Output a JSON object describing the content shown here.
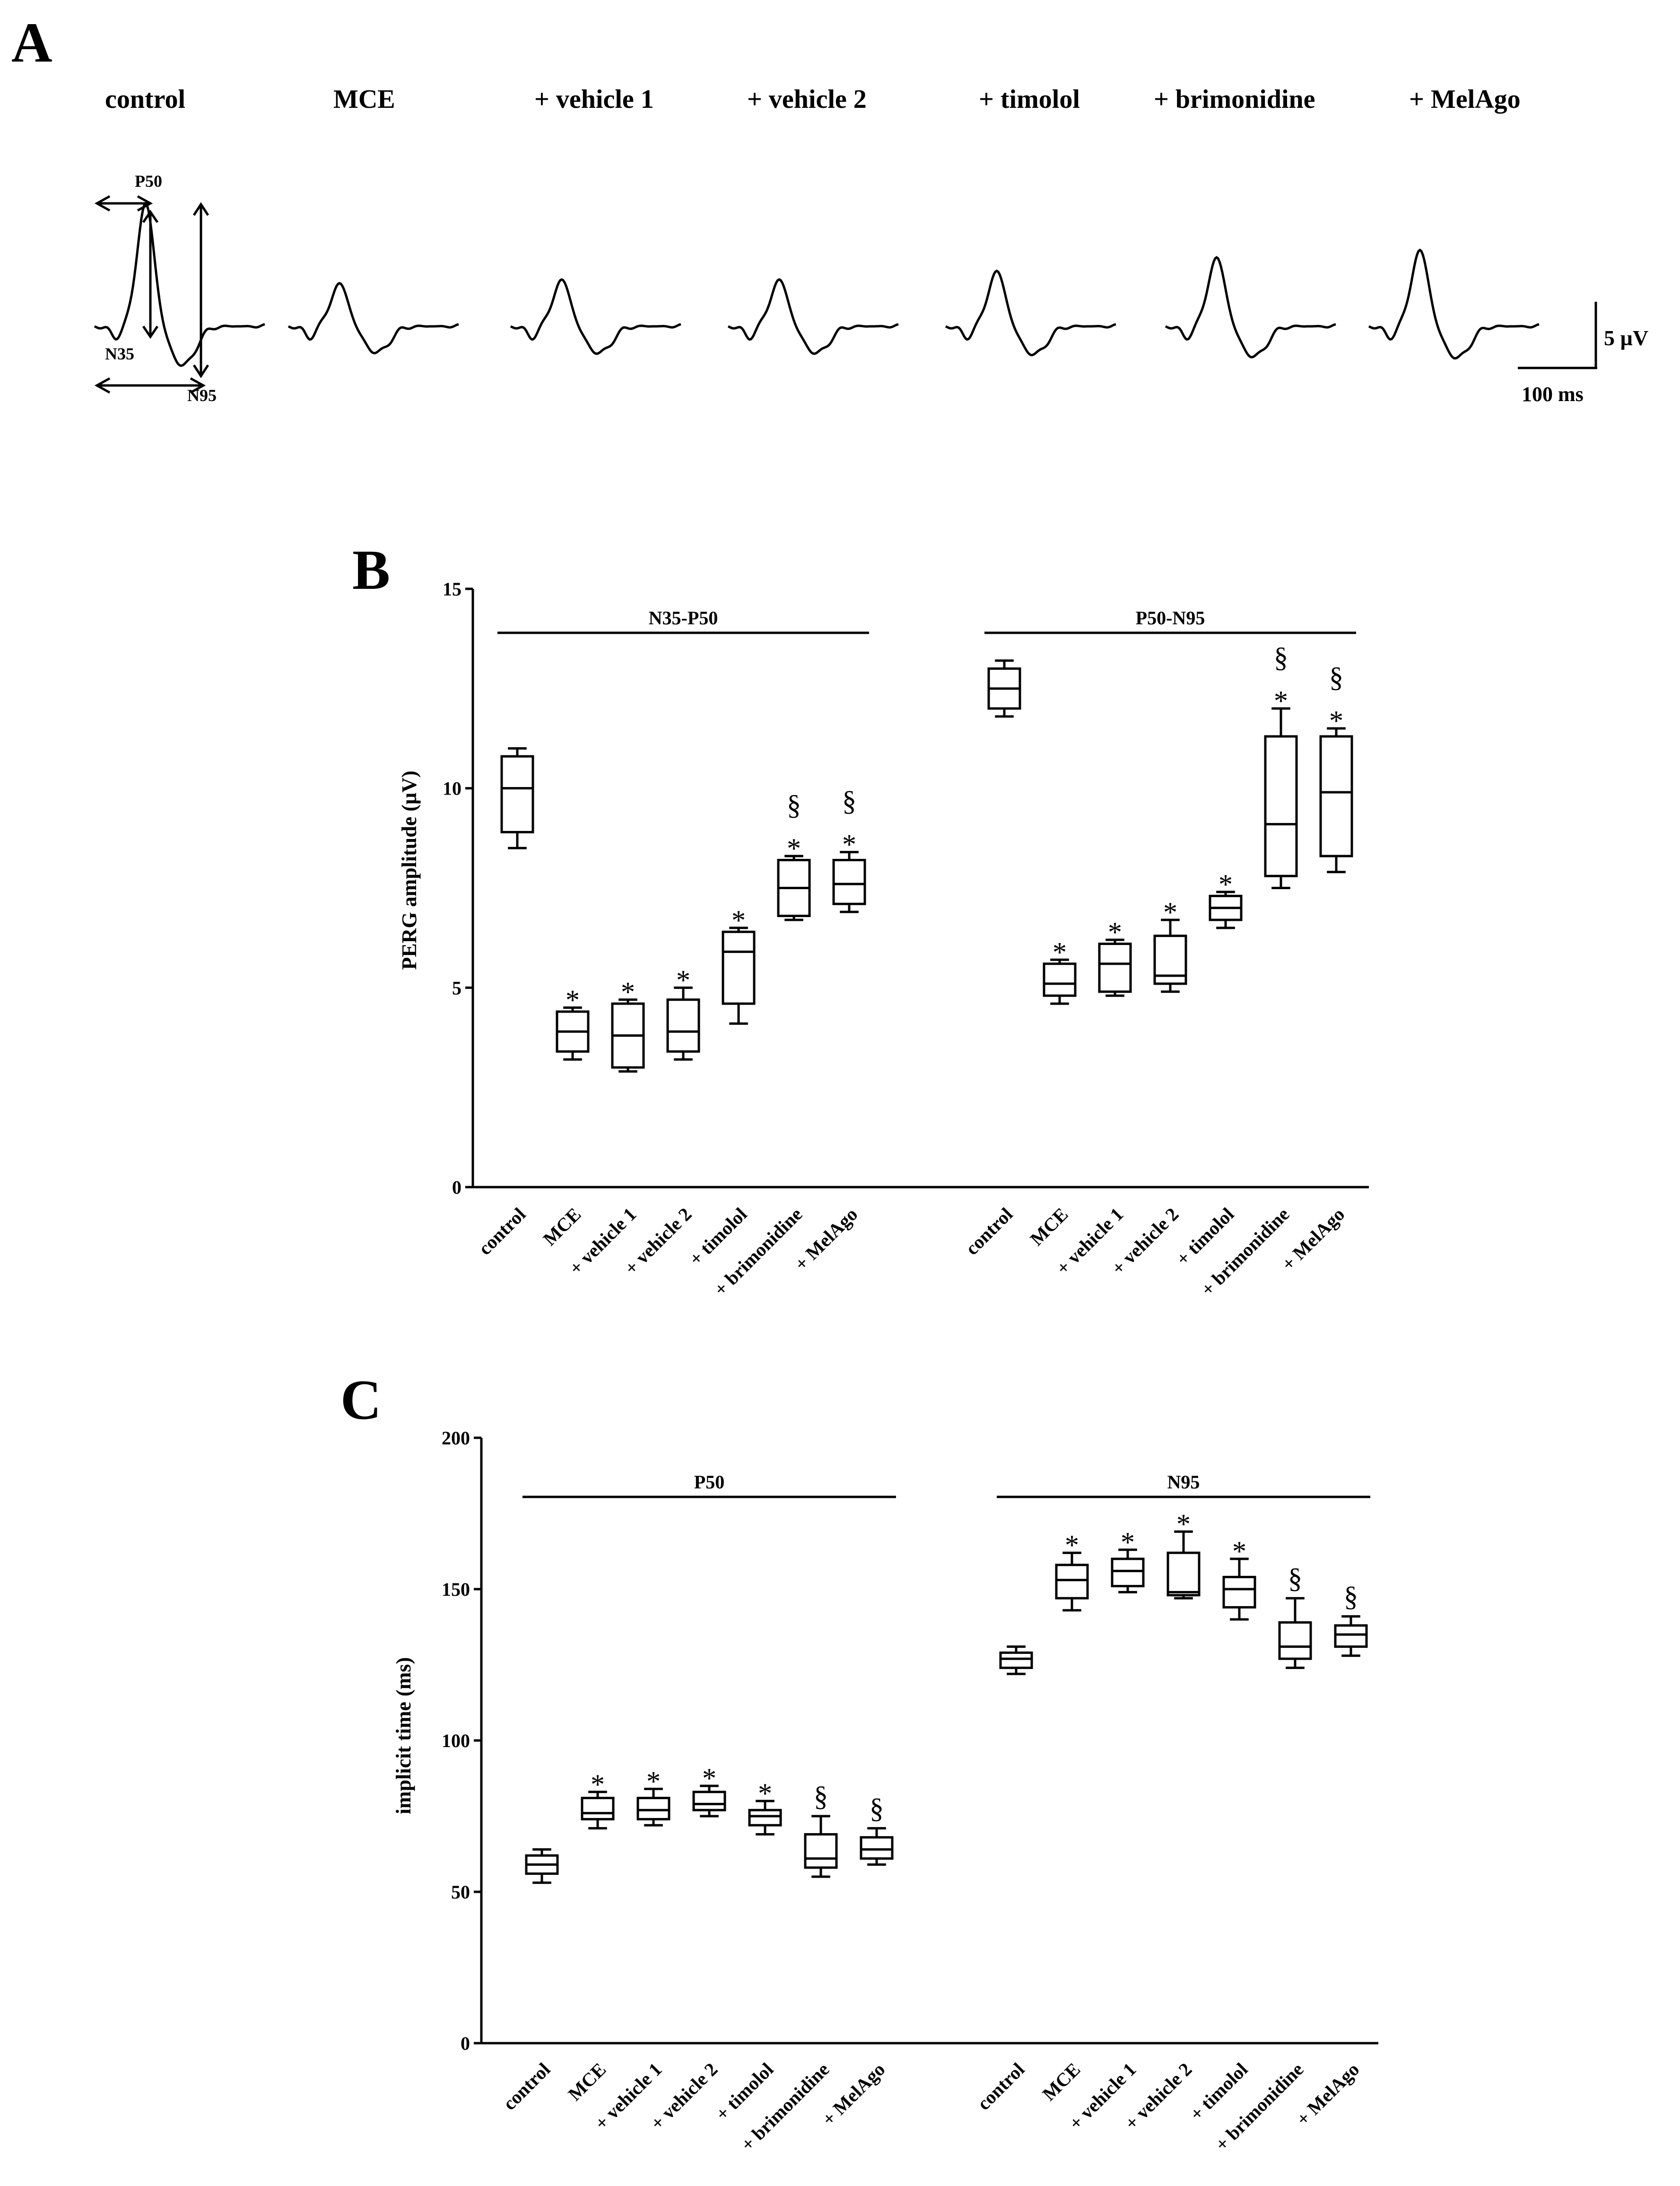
{
  "panel_a": {
    "letter": "A",
    "conditions": [
      "control",
      "MCE",
      "+ vehicle 1",
      "+ vehicle 2",
      "+ timolol",
      "+ brimonidine",
      "+ MelAgo"
    ],
    "peak_labels": {
      "p50": "P50",
      "n35": "N35",
      "n95": "N95"
    },
    "scale_bar": {
      "amplitude_label": "5 µV",
      "time_label": "100 ms",
      "amplitude_uv": 5,
      "time_ms": 100
    },
    "trace_peak_amplitudes": [
      1.0,
      0.35,
      0.38,
      0.38,
      0.45,
      0.56,
      0.62
    ]
  },
  "chart_data": [
    {
      "panel": "B",
      "type": "boxplot",
      "ylabel": "PERG amplitude (µV)",
      "ylim": [
        0,
        15
      ],
      "yticks": [
        0,
        5,
        10,
        15
      ],
      "groups": [
        {
          "name": "N35-P50",
          "categories": [
            "control",
            "MCE",
            "+ vehicle 1",
            "+ vehicle 2",
            "+ timolol",
            "+ brimonidine",
            "+ MelAgo"
          ],
          "boxes": [
            {
              "min": 8.5,
              "q1": 8.9,
              "median": 10.0,
              "q3": 10.8,
              "max": 11.0,
              "annot": ""
            },
            {
              "min": 3.2,
              "q1": 3.4,
              "median": 3.9,
              "q3": 4.4,
              "max": 4.5,
              "annot": "*"
            },
            {
              "min": 2.9,
              "q1": 3.0,
              "median": 3.8,
              "q3": 4.6,
              "max": 4.7,
              "annot": "*"
            },
            {
              "min": 3.2,
              "q1": 3.4,
              "median": 3.9,
              "q3": 4.7,
              "max": 5.0,
              "annot": "*"
            },
            {
              "min": 4.1,
              "q1": 4.6,
              "median": 5.9,
              "q3": 6.4,
              "max": 6.5,
              "annot": "*"
            },
            {
              "min": 6.7,
              "q1": 6.8,
              "median": 7.5,
              "q3": 8.2,
              "max": 8.3,
              "annot": "§*"
            },
            {
              "min": 6.9,
              "q1": 7.1,
              "median": 7.6,
              "q3": 8.2,
              "max": 8.4,
              "annot": "§*"
            }
          ]
        },
        {
          "name": "P50-N95",
          "categories": [
            "control",
            "MCE",
            "+ vehicle 1",
            "+ vehicle 2",
            "+ timolol",
            "+ brimonidine",
            "+ MelAgo"
          ],
          "boxes": [
            {
              "min": 11.8,
              "q1": 12.0,
              "median": 12.5,
              "q3": 13.0,
              "max": 13.2,
              "annot": ""
            },
            {
              "min": 4.6,
              "q1": 4.8,
              "median": 5.1,
              "q3": 5.6,
              "max": 5.7,
              "annot": "*"
            },
            {
              "min": 4.8,
              "q1": 4.9,
              "median": 5.6,
              "q3": 6.1,
              "max": 6.2,
              "annot": "*"
            },
            {
              "min": 4.9,
              "q1": 5.1,
              "median": 5.3,
              "q3": 6.3,
              "max": 6.7,
              "annot": "*"
            },
            {
              "min": 6.5,
              "q1": 6.7,
              "median": 7.0,
              "q3": 7.3,
              "max": 7.4,
              "annot": "*"
            },
            {
              "min": 7.5,
              "q1": 7.8,
              "median": 9.1,
              "q3": 11.3,
              "max": 12.0,
              "annot": "§*"
            },
            {
              "min": 7.9,
              "q1": 8.3,
              "median": 9.9,
              "q3": 11.3,
              "max": 11.5,
              "annot": "§*"
            }
          ]
        }
      ]
    },
    {
      "panel": "C",
      "type": "boxplot",
      "ylabel": "implicit time (ms)",
      "ylim": [
        0,
        200
      ],
      "yticks": [
        0,
        50,
        100,
        150,
        200
      ],
      "groups": [
        {
          "name": "P50",
          "categories": [
            "control",
            "MCE",
            "+ vehicle 1",
            "+ vehicle 2",
            "+ timolol",
            "+ brimonidine",
            "+ MelAgo"
          ],
          "boxes": [
            {
              "min": 53,
              "q1": 56,
              "median": 59,
              "q3": 62,
              "max": 64,
              "annot": ""
            },
            {
              "min": 71,
              "q1": 74,
              "median": 76,
              "q3": 81,
              "max": 83,
              "annot": "*"
            },
            {
              "min": 72,
              "q1": 74,
              "median": 77,
              "q3": 81,
              "max": 84,
              "annot": "*"
            },
            {
              "min": 75,
              "q1": 77,
              "median": 79,
              "q3": 83,
              "max": 85,
              "annot": "*"
            },
            {
              "min": 69,
              "q1": 72,
              "median": 75,
              "q3": 77,
              "max": 80,
              "annot": "*"
            },
            {
              "min": 55,
              "q1": 58,
              "median": 61,
              "q3": 69,
              "max": 75,
              "annot": "§"
            },
            {
              "min": 59,
              "q1": 61,
              "median": 64,
              "q3": 68,
              "max": 71,
              "annot": "§"
            }
          ]
        },
        {
          "name": "N95",
          "categories": [
            "control",
            "MCE",
            "+ vehicle 1",
            "+ vehicle 2",
            "+ timolol",
            "+ brimonidine",
            "+ MelAgo"
          ],
          "boxes": [
            {
              "min": 122,
              "q1": 124,
              "median": 127,
              "q3": 129,
              "max": 131,
              "annot": ""
            },
            {
              "min": 143,
              "q1": 147,
              "median": 153,
              "q3": 158,
              "max": 162,
              "annot": "*"
            },
            {
              "min": 149,
              "q1": 151,
              "median": 156,
              "q3": 160,
              "max": 163,
              "annot": "*"
            },
            {
              "min": 147,
              "q1": 148,
              "median": 149,
              "q3": 162,
              "max": 169,
              "annot": "*"
            },
            {
              "min": 140,
              "q1": 144,
              "median": 150,
              "q3": 154,
              "max": 160,
              "annot": "*"
            },
            {
              "min": 124,
              "q1": 127,
              "median": 131,
              "q3": 139,
              "max": 147,
              "annot": "§"
            },
            {
              "min": 128,
              "q1": 131,
              "median": 135,
              "q3": 138,
              "max": 141,
              "annot": "§"
            }
          ]
        }
      ]
    }
  ]
}
